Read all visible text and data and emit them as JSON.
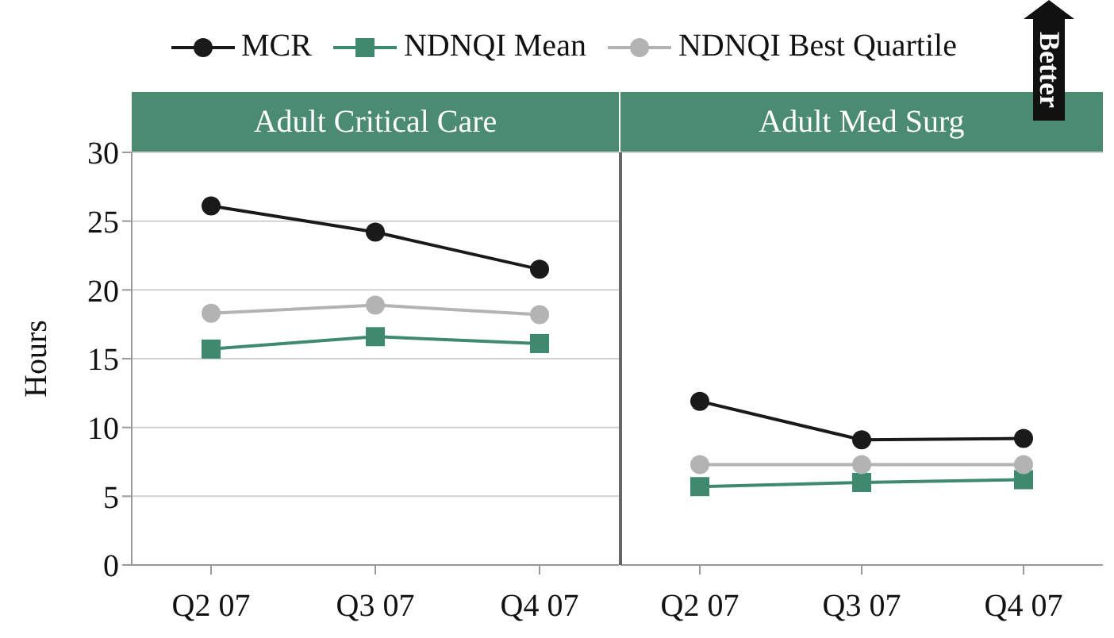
{
  "chart_data": [
    {
      "type": "line",
      "title": "Adult Critical Care",
      "ylabel": "Hours",
      "categories": [
        "Q2 07",
        "Q3 07",
        "Q4 07"
      ],
      "ylim": [
        0,
        30
      ],
      "yticks": [
        0,
        5,
        10,
        15,
        20,
        25,
        30
      ],
      "grid": "y",
      "legend": "top",
      "series": [
        {
          "name": "MCR",
          "color": "#1a1a1a",
          "marker": "circle",
          "values": [
            26.1,
            24.2,
            21.5
          ]
        },
        {
          "name": "NDNQI Mean",
          "color": "#3f8a6e",
          "marker": "square",
          "values": [
            15.7,
            16.6,
            16.1
          ]
        },
        {
          "name": "NDNQI Best Quartile",
          "color": "#b3b3b3",
          "marker": "circle",
          "values": [
            18.3,
            18.9,
            18.2
          ]
        }
      ]
    },
    {
      "type": "line",
      "title": "Adult Med Surg",
      "categories": [
        "Q2 07",
        "Q3 07",
        "Q4 07"
      ],
      "ylim": [
        0,
        30
      ],
      "yticks": [
        0,
        5,
        10,
        15,
        20,
        25,
        30
      ],
      "grid": "y",
      "tick_labels": "x",
      "annotations": [
        "Better"
      ],
      "series": [
        {
          "color": "#1a1a1a",
          "marker": "circle",
          "values": [
            11.9,
            9.1,
            9.2
          ]
        },
        {
          "color": "#3f8a6e",
          "marker": "square",
          "values": [
            5.7,
            6.0,
            6.2
          ]
        },
        {
          "color": "#b3b3b3",
          "marker": "circle",
          "values": [
            7.3,
            7.3,
            7.3
          ]
        }
      ]
    }
  ]
}
